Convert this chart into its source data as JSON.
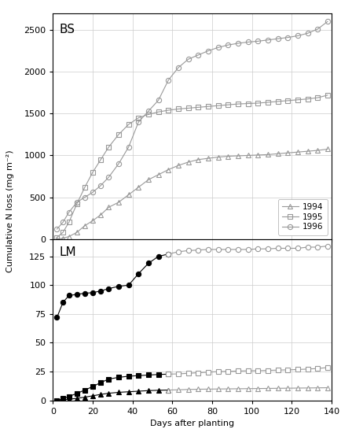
{
  "title_bs": "BS",
  "title_lm": "LM",
  "xlabel": "Days after planting",
  "ylabel": "Cumulative N loss (mg m⁻²)",
  "bs_1994_x": [
    2,
    5,
    8,
    12,
    16,
    20,
    24,
    28,
    33,
    38,
    43,
    48,
    53,
    58,
    63,
    68,
    73,
    78,
    83,
    88,
    93,
    98,
    103,
    108,
    113,
    118,
    123,
    128,
    133,
    138
  ],
  "bs_1994_y": [
    0,
    10,
    30,
    80,
    160,
    220,
    290,
    380,
    440,
    530,
    620,
    710,
    770,
    830,
    880,
    920,
    950,
    965,
    980,
    990,
    995,
    1000,
    1005,
    1010,
    1020,
    1030,
    1040,
    1050,
    1060,
    1075
  ],
  "bs_1995_x": [
    2,
    5,
    8,
    12,
    16,
    20,
    24,
    28,
    33,
    38,
    43,
    48,
    53,
    58,
    63,
    68,
    73,
    78,
    83,
    88,
    93,
    98,
    103,
    108,
    113,
    118,
    123,
    128,
    133,
    138
  ],
  "bs_1995_y": [
    20,
    80,
    200,
    420,
    620,
    800,
    950,
    1100,
    1250,
    1370,
    1450,
    1490,
    1520,
    1540,
    1555,
    1565,
    1575,
    1585,
    1595,
    1605,
    1615,
    1620,
    1625,
    1635,
    1645,
    1655,
    1665,
    1675,
    1690,
    1720
  ],
  "bs_1996_x": [
    2,
    5,
    8,
    12,
    16,
    20,
    24,
    28,
    33,
    38,
    43,
    48,
    53,
    58,
    63,
    68,
    73,
    78,
    83,
    88,
    93,
    98,
    103,
    108,
    113,
    118,
    123,
    128,
    133,
    138
  ],
  "bs_1996_y": [
    120,
    200,
    320,
    440,
    500,
    560,
    640,
    740,
    900,
    1100,
    1400,
    1530,
    1660,
    1900,
    2050,
    2150,
    2200,
    2250,
    2290,
    2320,
    2340,
    2355,
    2365,
    2380,
    2395,
    2410,
    2430,
    2460,
    2510,
    2600
  ],
  "lm_1994_filled_x": [
    2,
    5,
    8,
    12,
    16,
    20,
    24,
    28,
    33,
    38,
    43,
    48,
    53,
    58
  ],
  "lm_1994_filled_y": [
    0,
    0.5,
    1.0,
    1.8,
    2.8,
    4.0,
    5.2,
    6.2,
    7.0,
    7.5,
    8.0,
    8.5,
    8.8,
    9.0
  ],
  "lm_1994_open_x": [
    58,
    63,
    68,
    73,
    78,
    83,
    88,
    93,
    98,
    103,
    108,
    113,
    118,
    123,
    128,
    133,
    138
  ],
  "lm_1994_open_y": [
    9.0,
    9.2,
    9.5,
    9.7,
    9.8,
    9.9,
    10.0,
    10.1,
    10.2,
    10.3,
    10.4,
    10.5,
    10.6,
    10.7,
    10.8,
    10.9,
    11.0
  ],
  "lm_1995_filled_x": [
    2,
    5,
    8,
    12,
    16,
    20,
    24,
    28,
    33,
    38,
    43,
    48,
    53,
    58
  ],
  "lm_1995_filled_y": [
    0,
    1.5,
    3.5,
    6.0,
    9.0,
    12.0,
    15.5,
    18.5,
    20.0,
    21.0,
    21.5,
    22.0,
    22.5,
    22.8
  ],
  "lm_1995_open_x": [
    58,
    63,
    68,
    73,
    78,
    83,
    88,
    93,
    98,
    103,
    108,
    113,
    118,
    123,
    128,
    133,
    138
  ],
  "lm_1995_open_y": [
    22.8,
    23.0,
    23.5,
    24.0,
    24.5,
    25.0,
    25.2,
    25.5,
    25.7,
    25.8,
    26.0,
    26.3,
    26.5,
    26.8,
    27.2,
    27.7,
    28.5
  ],
  "lm_1996_filled_x": [
    2,
    5,
    8,
    12,
    16,
    20,
    24,
    28,
    33,
    38,
    43,
    48,
    53,
    58
  ],
  "lm_1996_filled_y": [
    72,
    85,
    91,
    92,
    93,
    93.5,
    95,
    97,
    99,
    100,
    110,
    119,
    125,
    127
  ],
  "lm_1996_open_x": [
    58,
    63,
    68,
    73,
    78,
    83,
    88,
    93,
    98,
    103,
    108,
    113,
    118,
    123,
    128,
    133,
    138
  ],
  "lm_1996_open_y": [
    127,
    129,
    130,
    130.5,
    131,
    131,
    131,
    131,
    131,
    131.5,
    131.5,
    132,
    132,
    132,
    133,
    133,
    134
  ],
  "bs_ylim": [
    0,
    2700
  ],
  "lm_ylim": [
    0,
    140
  ],
  "xlim": [
    0,
    140
  ],
  "bs_yticks": [
    0,
    500,
    1000,
    1500,
    2000,
    2500
  ],
  "lm_yticks": [
    0,
    25,
    50,
    75,
    100,
    125
  ],
  "xticks": [
    0,
    20,
    40,
    60,
    80,
    100,
    120,
    140
  ],
  "gray": "#999999",
  "black": "#000000",
  "grid_color": "#cccccc",
  "marker_size_bs": 4.5,
  "marker_size_lm": 4.5,
  "linewidth": 0.8,
  "fontsize_tick": 8,
  "fontsize_label": 8,
  "fontsize_panel": 11,
  "fontsize_legend": 7.5
}
